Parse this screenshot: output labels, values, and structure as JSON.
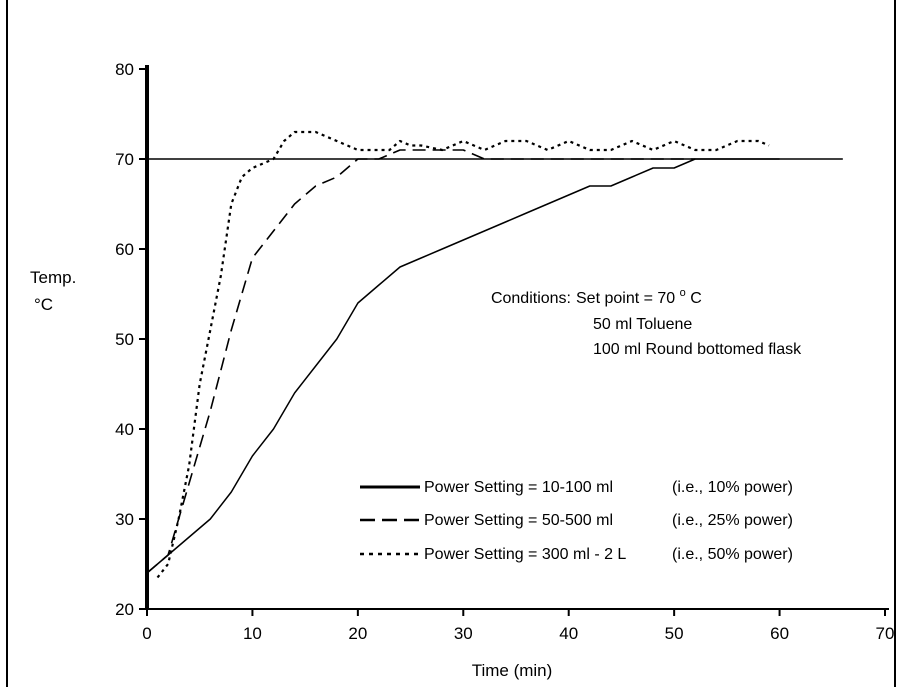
{
  "chart_data": {
    "type": "line",
    "title": "",
    "xlabel": "Time (min)",
    "ylabel": "Temp.",
    "ylabel_unit": "°C",
    "xlim": [
      0,
      70
    ],
    "ylim": [
      20,
      80
    ],
    "x_ticks": [
      0,
      10,
      20,
      30,
      40,
      50,
      60,
      70
    ],
    "y_ticks": [
      20,
      30,
      40,
      50,
      60,
      70,
      80
    ],
    "grid": false,
    "setpoint": {
      "value": 70,
      "x_range": [
        0,
        66
      ]
    },
    "conditions": {
      "heading": "Conditions:",
      "set_point_prefix": "Set point = 70",
      "set_point_degree": "o",
      "set_point_suffix": " C",
      "line2": "50 ml Toluene",
      "line3": "100 ml Round bottomed flask"
    },
    "legend_position": "lower-right",
    "series": [
      {
        "name": "Power Setting = 10-100 ml",
        "note": "(i.e., 10% power)",
        "style": "solid",
        "color": "#000000",
        "points": [
          [
            0,
            24
          ],
          [
            2,
            26
          ],
          [
            4,
            28
          ],
          [
            6,
            30
          ],
          [
            8,
            33
          ],
          [
            10,
            37
          ],
          [
            12,
            40
          ],
          [
            14,
            44
          ],
          [
            16,
            47
          ],
          [
            18,
            50
          ],
          [
            20,
            54
          ],
          [
            22,
            56
          ],
          [
            24,
            58
          ],
          [
            26,
            59
          ],
          [
            28,
            60
          ],
          [
            30,
            61
          ],
          [
            32,
            62
          ],
          [
            34,
            63
          ],
          [
            36,
            64
          ],
          [
            38,
            65
          ],
          [
            40,
            66
          ],
          [
            42,
            67
          ],
          [
            44,
            67
          ],
          [
            46,
            68
          ],
          [
            48,
            69
          ],
          [
            50,
            69
          ],
          [
            52,
            70
          ],
          [
            54,
            70
          ],
          [
            56,
            70
          ],
          [
            58,
            70
          ],
          [
            60,
            70
          ]
        ]
      },
      {
        "name": "Power Setting = 50-500 ml",
        "note": "(i.e., 25% power)",
        "style": "dashed",
        "color": "#000000",
        "points": [
          [
            0,
            24
          ],
          [
            2,
            26
          ],
          [
            4,
            34
          ],
          [
            6,
            42
          ],
          [
            8,
            51
          ],
          [
            10,
            59
          ],
          [
            12,
            62
          ],
          [
            14,
            65
          ],
          [
            16,
            67
          ],
          [
            18,
            68
          ],
          [
            20,
            70
          ],
          [
            22,
            70
          ],
          [
            24,
            71
          ],
          [
            26,
            71
          ],
          [
            28,
            71
          ],
          [
            30,
            71
          ],
          [
            32,
            70
          ],
          [
            34,
            70
          ],
          [
            36,
            70
          ],
          [
            38,
            70
          ],
          [
            40,
            70
          ],
          [
            42,
            70
          ],
          [
            44,
            70
          ],
          [
            46,
            70
          ],
          [
            48,
            70
          ],
          [
            50,
            70
          ],
          [
            52,
            70
          ]
        ]
      },
      {
        "name": "Power Setting = 300 ml - 2 L",
        "note": "(i.e., 50% power)",
        "style": "dotted",
        "color": "#000000",
        "points": [
          [
            1,
            23.5
          ],
          [
            2,
            25
          ],
          [
            3,
            30
          ],
          [
            4,
            36
          ],
          [
            5,
            45
          ],
          [
            6,
            51
          ],
          [
            7,
            57
          ],
          [
            8,
            65
          ],
          [
            9,
            68
          ],
          [
            10,
            69
          ],
          [
            12,
            70
          ],
          [
            13,
            72
          ],
          [
            14,
            73
          ],
          [
            16,
            73
          ],
          [
            18,
            72
          ],
          [
            20,
            71
          ],
          [
            22,
            71
          ],
          [
            23,
            71
          ],
          [
            24,
            72
          ],
          [
            25,
            71.5
          ],
          [
            26,
            71.5
          ],
          [
            28,
            71
          ],
          [
            30,
            72
          ],
          [
            32,
            71
          ],
          [
            34,
            72
          ],
          [
            36,
            72
          ],
          [
            38,
            71
          ],
          [
            40,
            72
          ],
          [
            42,
            71
          ],
          [
            44,
            71
          ],
          [
            46,
            72
          ],
          [
            48,
            71
          ],
          [
            50,
            72
          ],
          [
            52,
            71
          ],
          [
            54,
            71
          ],
          [
            56,
            72
          ],
          [
            58,
            72
          ],
          [
            59,
            71.5
          ]
        ]
      }
    ]
  }
}
